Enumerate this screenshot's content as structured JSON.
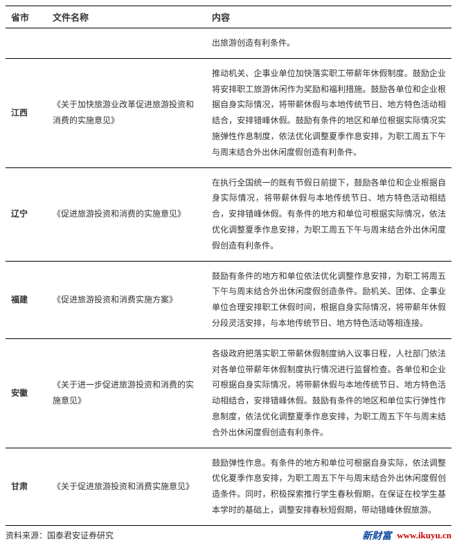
{
  "headers": {
    "province": "省市",
    "document": "文件名称",
    "content": "内容"
  },
  "preRow": {
    "content": "出旅游创造有利条件。"
  },
  "rows": [
    {
      "province": "江西",
      "document": "《关于加快旅游业改革促进旅游投资和消费的实施意见》",
      "content": "推动机关、企事业单位加快落实职工带薪年休假制度。鼓励企业将安排职工旅游休闲作为奖励和福利措施。鼓励各单位和企业根据自身实际情况，将带薪休假与本地传统节日、地方特色活动相结合，安排错峰休假。鼓励有条件的地区和单位根据实际情况实施弹性作息制度，依法优化调整夏季作息安排，为职工周五下午与周末结合外出休闲度假创造有利条件。"
    },
    {
      "province": "辽宁",
      "document": "《促进旅游投资和消费的实施意见》",
      "content": "在执行全国统一的既有节假日前提下，鼓励各单位和企业根据自身实际情况，将带薪休假与本地传统节日、地方特色活动相结合，安排错峰休假。有条件的地方和单位可根据实际情况，依法优化调整夏季作息安排，为职工周五下午与周末结合外出休闲度假创造有利条件。"
    },
    {
      "province": "福建",
      "document": "《促进旅游投资和消费实施方案》",
      "content": "鼓励有条件的地方和单位依法优化调整作息安排，为职工将周五下午与周末结合外出休闲度假创造条件。励机关、团体、企事业单位合理安排职工休假时间，根据自身实际情况，将带薪年休假分段灵活安排，与本地传统节日、地方特色活动等相连接。"
    },
    {
      "province": "安徽",
      "document": "《关于进一步促进旅游投资和消费的实施意见》",
      "content": "各级政府把落实职工带薪休假制度纳入议事日程，人社部门依法对各单位带薪年休假制度执行情况进行监督检查。各单位和企业可根据自身实际情况，将带薪休假与本地传统节日、地方特色活动相结合，安排错峰休假。鼓励有条件的地区和单位实行弹性作息制度，依法优化调整夏季作息安排，为职工周五下午与周末结合外出休闲度假创造有利条件。"
    },
    {
      "province": "甘肃",
      "document": "《关于促进旅游投资和消费实施意见》",
      "content": "鼓励弹性作息。有条件的地方和单位可根据自身实际，依法调整优化夏季作息安排，为职工周五下午与周末结合外出休闲度假创造条件。同时，积极探索推行学生春秋假期，在保证在校学生基本学时的基础上，调整安排春秋短假期，带动错峰休假旅游。"
    }
  ],
  "source": "资料来源：国泰君安证券研究",
  "brand": {
    "cn": "新财富",
    "url": "www.ikuyu.cn"
  }
}
